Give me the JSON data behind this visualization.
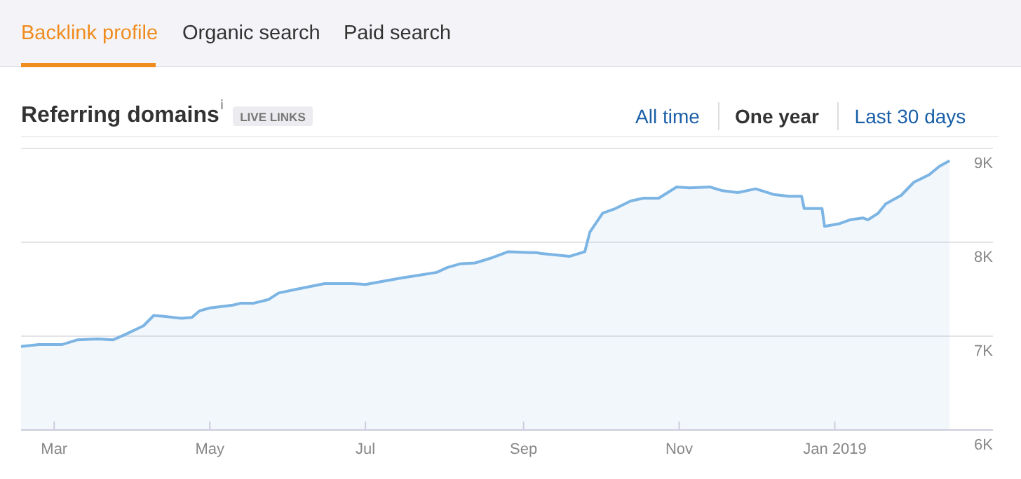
{
  "chart_data": {
    "type": "area",
    "title": "Referring domains",
    "subtitle": "LIVE LINKS",
    "annotations": [
      "Backlink profile",
      "Organic search",
      "Paid search",
      "All time",
      "One year",
      "Last 30 days"
    ],
    "x": [
      "2018-02-16",
      "2018-02-23",
      "2018-03-04",
      "2018-03-10",
      "2018-03-18",
      "2018-03-24",
      "2018-03-29",
      "2018-04-05",
      "2018-04-09",
      "2018-04-13",
      "2018-04-20",
      "2018-04-24",
      "2018-04-27",
      "2018-05-01",
      "2018-05-10",
      "2018-05-13",
      "2018-05-18",
      "2018-05-24",
      "2018-05-28",
      "2018-06-04",
      "2018-06-15",
      "2018-06-26",
      "2018-07-01",
      "2018-07-07",
      "2018-07-15",
      "2018-07-22",
      "2018-07-29",
      "2018-08-02",
      "2018-08-07",
      "2018-08-13",
      "2018-08-19",
      "2018-08-26",
      "2018-09-04",
      "2018-09-06",
      "2018-09-08",
      "2018-09-19",
      "2018-09-25",
      "2018-09-27",
      "2018-10-02",
      "2018-10-07",
      "2018-10-13",
      "2018-10-18",
      "2018-10-24",
      "2018-10-31",
      "2018-11-05",
      "2018-11-13",
      "2018-11-18",
      "2018-11-24",
      "2018-12-01",
      "2018-12-08",
      "2018-12-14",
      "2018-12-19",
      "2018-12-20",
      "2018-12-27",
      "2018-12-28",
      "2019-01-03",
      "2019-01-07",
      "2019-01-12",
      "2019-01-14",
      "2019-01-18",
      "2019-01-21",
      "2019-01-27",
      "2019-02-01",
      "2019-02-07",
      "2019-02-11",
      "2019-02-15"
    ],
    "series": [
      {
        "color": "#7cb5e4",
        "values": [
          6890,
          6910,
          6910,
          6960,
          6970,
          6960,
          7020,
          7110,
          7220,
          7210,
          7190,
          7200,
          7270,
          7300,
          7330,
          7350,
          7350,
          7390,
          7460,
          7500,
          7560,
          7560,
          7550,
          7580,
          7620,
          7650,
          7680,
          7730,
          7770,
          7780,
          7830,
          7900,
          7890,
          7890,
          7880,
          7850,
          7900,
          8110,
          8310,
          8360,
          8440,
          8470,
          8470,
          8590,
          8580,
          8590,
          8550,
          8530,
          8570,
          8510,
          8490,
          8490,
          8360,
          8360,
          8170,
          8200,
          8240,
          8260,
          8240,
          8310,
          8410,
          8500,
          8640,
          8720,
          8810,
          8870
        ]
      }
    ],
    "xlim": [
      "2018-02-16",
      "2019-03-04"
    ],
    "xticks": [
      {
        "value": "2018-03-01",
        "label": "Mar"
      },
      {
        "value": "2018-05-01",
        "label": "May"
      },
      {
        "value": "2018-07-01",
        "label": "Jul"
      },
      {
        "value": "2018-09-01",
        "label": "Sep"
      },
      {
        "value": "2018-11-01",
        "label": "Nov"
      },
      {
        "value": "2019-01-01",
        "label": "Jan 2019"
      }
    ],
    "ylim": [
      6000,
      9000
    ],
    "yticks": [
      {
        "value": 6000,
        "label": "6K"
      },
      {
        "value": 7000,
        "label": "7K"
      },
      {
        "value": 8000,
        "label": "8K"
      },
      {
        "value": 9000,
        "label": "9K"
      }
    ],
    "grid": "y"
  }
}
